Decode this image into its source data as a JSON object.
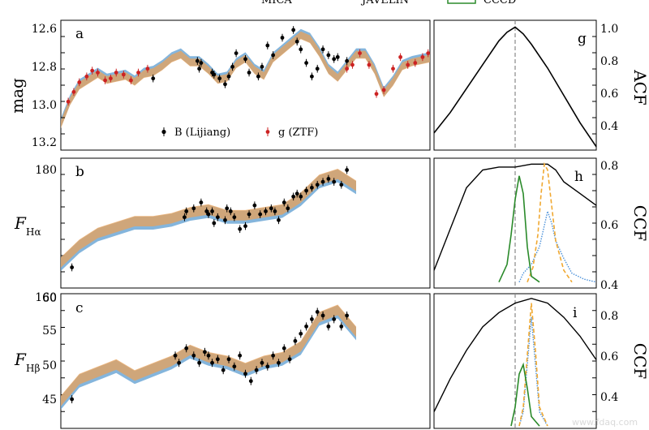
{
  "figure": {
    "top_legend": [
      "MICA",
      "JAVELIN",
      "CCCD"
    ],
    "colors": {
      "mica": "#4a90d9",
      "javelin": "#f0a830",
      "cccd": "#2a8a2a",
      "acf": "#000000",
      "band_blue": "#6fa8d6",
      "band_orange": "#e8a15a",
      "ztf": "#cc2222",
      "zero_line": "#888888"
    },
    "watermark": "www.fdaq.com"
  },
  "chart_data": [
    {
      "type": "scatter",
      "panel": "a",
      "ylabel": "mag",
      "yticks": [
        "12.6",
        "12.8",
        "13.0",
        "13.2"
      ],
      "ylim": [
        13.22,
        12.55
      ],
      "inverted_y": true,
      "legend": [
        "B (Lijiang)",
        "g (ZTF)"
      ],
      "series": [
        {
          "name": "B (Lijiang)",
          "x": [
            0.5,
            0.74,
            0.75,
            0.76,
            0.82,
            0.83,
            0.86,
            0.89,
            0.91,
            0.93,
            0.95,
            1.0,
            1.02,
            1.07,
            1.09,
            1.12,
            1.15,
            1.2,
            1.26,
            1.28,
            1.3,
            1.33,
            1.36,
            1.39,
            1.42,
            1.45,
            1.48,
            1.5,
            1.55
          ],
          "y": [
            12.85,
            12.76,
            12.8,
            12.77,
            12.82,
            12.83,
            12.85,
            12.88,
            12.84,
            12.79,
            12.72,
            12.75,
            12.82,
            12.84,
            12.79,
            12.68,
            12.73,
            12.64,
            12.6,
            12.66,
            12.7,
            12.77,
            12.84,
            12.8,
            12.7,
            12.73,
            12.75,
            12.74,
            12.76
          ]
        },
        {
          "name": "g (ZTF)",
          "x": [
            0.04,
            0.07,
            0.1,
            0.14,
            0.17,
            0.2,
            0.24,
            0.27,
            0.3,
            0.34,
            0.38,
            0.42,
            0.47,
            1.55,
            1.58,
            1.62,
            1.67,
            1.71,
            1.75,
            1.8,
            1.84,
            1.88,
            1.92,
            1.96,
            1.99
          ],
          "y": [
            12.97,
            12.92,
            12.87,
            12.84,
            12.81,
            12.82,
            12.86,
            12.85,
            12.82,
            12.83,
            12.86,
            12.82,
            12.8,
            12.8,
            12.78,
            12.72,
            12.78,
            12.93,
            12.91,
            12.8,
            12.74,
            12.78,
            12.77,
            12.74,
            12.72
          ]
        }
      ],
      "bands_x": [
        0.0,
        0.05,
        0.1,
        0.15,
        0.2,
        0.25,
        0.3,
        0.35,
        0.4,
        0.45,
        0.5,
        0.55,
        0.6,
        0.65,
        0.7,
        0.75,
        0.8,
        0.85,
        0.9,
        0.95,
        1.0,
        1.05,
        1.1,
        1.15,
        1.2,
        1.25,
        1.3,
        1.35,
        1.4,
        1.45,
        1.5,
        1.55,
        1.6,
        1.65,
        1.7,
        1.75,
        1.8,
        1.85,
        1.9,
        1.95,
        2.0
      ],
      "bands_y": [
        13.08,
        12.96,
        12.88,
        12.85,
        12.82,
        12.85,
        12.84,
        12.83,
        12.86,
        12.82,
        12.81,
        12.78,
        12.74,
        12.72,
        12.76,
        12.76,
        12.8,
        12.85,
        12.84,
        12.77,
        12.74,
        12.8,
        12.83,
        12.74,
        12.7,
        12.66,
        12.62,
        12.64,
        12.71,
        12.8,
        12.84,
        12.78,
        12.72,
        12.72,
        12.8,
        12.92,
        12.86,
        12.78,
        12.76,
        12.75,
        12.74
      ]
    },
    {
      "type": "scatter",
      "panel": "b",
      "ylabel": "F_Hα",
      "yticks": [
        "160",
        "180"
      ],
      "ylim": [
        140,
        184
      ],
      "series": [
        {
          "name": "Hα",
          "x": [
            0.06,
            0.67,
            0.68,
            0.72,
            0.76,
            0.79,
            0.8,
            0.82,
            0.83,
            0.85,
            0.89,
            0.9,
            0.92,
            0.94,
            0.97,
            1.0,
            1.02,
            1.05,
            1.08,
            1.11,
            1.14,
            1.16,
            1.18,
            1.21,
            1.23,
            1.26,
            1.28,
            1.3,
            1.33,
            1.36,
            1.39,
            1.42,
            1.45,
            1.48,
            1.52,
            1.55
          ],
          "y": [
            147,
            164,
            166,
            167,
            169,
            166,
            165,
            166,
            162,
            164,
            163,
            167,
            166,
            164,
            160,
            161,
            165,
            168,
            165,
            166,
            167,
            166,
            163,
            169,
            167,
            171,
            172,
            171,
            173,
            174,
            175,
            176,
            177,
            176,
            175,
            180
          ]
        }
      ],
      "bands_x": [
        0.0,
        0.1,
        0.2,
        0.3,
        0.4,
        0.5,
        0.6,
        0.7,
        0.8,
        0.9,
        1.0,
        1.1,
        1.2,
        1.3,
        1.4,
        1.5,
        1.6
      ],
      "bands_y": [
        148,
        154,
        158,
        160,
        162,
        162,
        163,
        165,
        166,
        164,
        164,
        165,
        166,
        170,
        176,
        178,
        174
      ]
    },
    {
      "type": "scatter",
      "panel": "c",
      "ylabel": "F_Hβ",
      "yticks": [
        "45",
        "50",
        "55",
        "60"
      ],
      "ylim": [
        42,
        60.5
      ],
      "series": [
        {
          "name": "Hβ",
          "x": [
            0.06,
            0.62,
            0.64,
            0.68,
            0.72,
            0.75,
            0.78,
            0.8,
            0.82,
            0.85,
            0.88,
            0.91,
            0.94,
            0.97,
            1.0,
            1.03,
            1.06,
            1.09,
            1.12,
            1.15,
            1.18,
            1.21,
            1.24,
            1.27,
            1.3,
            1.33,
            1.36,
            1.39,
            1.42,
            1.45,
            1.48,
            1.52,
            1.55
          ],
          "y": [
            46,
            52,
            51,
            53,
            52,
            51,
            52.5,
            52,
            51,
            51.5,
            50,
            51.5,
            50.5,
            52,
            49.5,
            48.5,
            50,
            51,
            50.5,
            52,
            51,
            53,
            51.5,
            54,
            55,
            56,
            57,
            58,
            57.5,
            56,
            57,
            56,
            57.5
          ]
        }
      ],
      "bands_x": [
        0.0,
        0.1,
        0.2,
        0.3,
        0.4,
        0.5,
        0.6,
        0.7,
        0.8,
        0.9,
        1.0,
        1.1,
        1.2,
        1.3,
        1.4,
        1.5,
        1.6
      ],
      "bands_y": [
        45.5,
        48.5,
        49.5,
        50.5,
        49,
        50,
        51,
        52.5,
        51.5,
        51,
        50,
        51,
        51.5,
        53,
        57,
        58,
        55
      ]
    },
    {
      "type": "line",
      "panel": "g",
      "right_label": "ACF",
      "yticks": [
        "0.4",
        "0.6",
        "0.8",
        "1.0"
      ],
      "ylim": [
        0.28,
        1.04
      ],
      "series": [
        {
          "name": "ACF",
          "x": [
            -1,
            -0.8,
            -0.6,
            -0.4,
            -0.2,
            -0.1,
            0,
            0.1,
            0.2,
            0.4,
            0.6,
            0.8,
            1
          ],
          "y": [
            0.38,
            0.5,
            0.64,
            0.78,
            0.92,
            0.97,
            1.0,
            0.96,
            0.9,
            0.76,
            0.6,
            0.44,
            0.3
          ]
        }
      ]
    },
    {
      "type": "line",
      "panel": "h",
      "right_label": "CCF",
      "yticks": [
        "0.4",
        "0.6",
        "0.8"
      ],
      "ylim": [
        0.38,
        0.82
      ],
      "series": [
        {
          "name": "CCF",
          "x": [
            -1,
            -0.8,
            -0.6,
            -0.4,
            -0.2,
            0,
            0.2,
            0.4,
            0.5,
            0.6,
            0.8,
            1
          ],
          "y": [
            0.44,
            0.58,
            0.72,
            0.78,
            0.79,
            0.79,
            0.8,
            0.8,
            0.78,
            0.74,
            0.7,
            0.66
          ]
        },
        {
          "name": "MICA",
          "x": [
            0.05,
            0.1,
            0.2,
            0.3,
            0.35,
            0.4,
            0.45,
            0.5,
            0.6,
            0.7,
            0.85,
            1
          ],
          "y": [
            0.4,
            0.43,
            0.46,
            0.52,
            0.58,
            0.64,
            0.6,
            0.54,
            0.48,
            0.43,
            0.41,
            0.4
          ]
        },
        {
          "name": "JAVELIN",
          "x": [
            0.15,
            0.22,
            0.28,
            0.32,
            0.36,
            0.4,
            0.45,
            0.5,
            0.6,
            0.7
          ],
          "y": [
            0.4,
            0.45,
            0.56,
            0.7,
            0.8,
            0.78,
            0.66,
            0.54,
            0.44,
            0.4
          ]
        },
        {
          "name": "CCCD",
          "x": [
            -0.2,
            -0.1,
            -0.05,
            0.0,
            0.05,
            0.1,
            0.15,
            0.2,
            0.3
          ],
          "y": [
            0.4,
            0.46,
            0.56,
            0.68,
            0.76,
            0.7,
            0.52,
            0.42,
            0.4
          ]
        }
      ]
    },
    {
      "type": "line",
      "panel": "i",
      "right_label": "CCF",
      "yticks": [
        "0.4",
        "0.6",
        "0.8"
      ],
      "ylim": [
        0.33,
        0.9
      ],
      "series": [
        {
          "name": "CCF",
          "x": [
            -1,
            -0.8,
            -0.6,
            -0.4,
            -0.2,
            0,
            0.2,
            0.4,
            0.6,
            0.8,
            1
          ],
          "y": [
            0.4,
            0.54,
            0.66,
            0.76,
            0.82,
            0.86,
            0.88,
            0.86,
            0.8,
            0.72,
            0.62
          ]
        },
        {
          "name": "MICA",
          "x": [
            0.05,
            0.1,
            0.15,
            0.2,
            0.25,
            0.3,
            0.4
          ],
          "y": [
            0.34,
            0.4,
            0.6,
            0.8,
            0.6,
            0.4,
            0.34
          ]
        },
        {
          "name": "JAVELIN",
          "x": [
            0.05,
            0.1,
            0.15,
            0.2,
            0.25,
            0.3,
            0.4
          ],
          "y": [
            0.34,
            0.42,
            0.64,
            0.86,
            0.66,
            0.42,
            0.34
          ]
        },
        {
          "name": "CCCD",
          "x": [
            -0.05,
            0.0,
            0.05,
            0.1,
            0.15,
            0.2,
            0.3
          ],
          "y": [
            0.34,
            0.42,
            0.56,
            0.6,
            0.5,
            0.38,
            0.34
          ]
        }
      ]
    }
  ],
  "labels": {
    "a": "a",
    "b": "b",
    "c": "c",
    "g": "g",
    "h": "h",
    "i": "i",
    "mag": "mag",
    "f_ha": "F",
    "f_ha_sub": "Hα",
    "f_hb": "F",
    "f_hb_sub": "Hβ",
    "acf": "ACF",
    "ccf": "CCF",
    "legend_b": "B (Lijiang)",
    "legend_g": "g (ZTF)"
  }
}
